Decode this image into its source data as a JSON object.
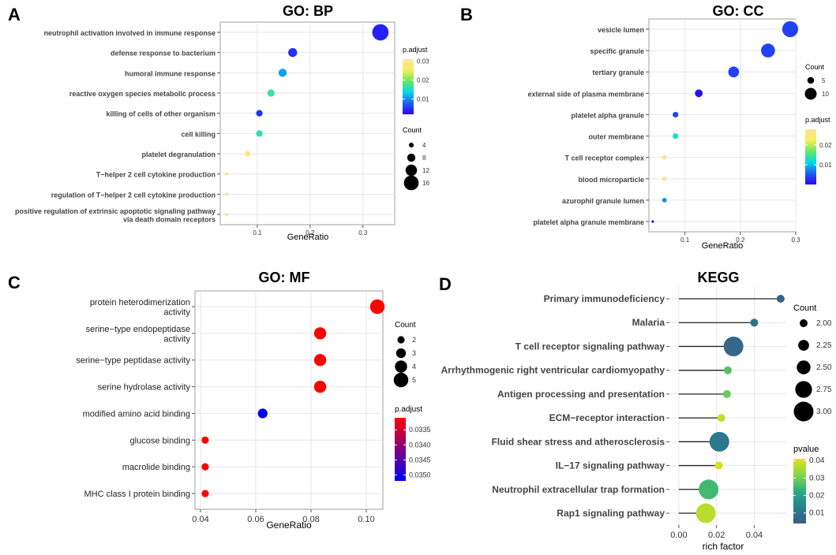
{
  "chart_data": [
    {
      "panel": "A",
      "type": "scatter",
      "title": "GO: BP",
      "xlabel": "GeneRatio",
      "xlim": [
        0.03,
        0.36
      ],
      "xticks": [
        "0.1",
        "0.2",
        "0.3"
      ],
      "xtick_values": [
        0.1,
        0.2,
        0.3
      ],
      "categories": [
        "neutrophil activation involved in immune response",
        "defense response to bacterium",
        "humoral immune response",
        "reactive oxygen species metabolic process",
        "killing of cells of other organism",
        "cell killing",
        "platelet degranulation",
        "T−helper 2 cell cytokine production",
        "regulation of T−helper 2 cell cytokine production",
        "positive regulation of extrinsic apoptotic signaling pathway|via death domain receptors"
      ],
      "points": [
        {
          "x": 0.333,
          "count": 18,
          "padj": 0.004
        },
        {
          "x": 0.167,
          "count": 9,
          "padj": 0.005
        },
        {
          "x": 0.148,
          "count": 8,
          "padj": 0.011
        },
        {
          "x": 0.126,
          "count": 7,
          "padj": 0.017
        },
        {
          "x": 0.104,
          "count": 6,
          "padj": 0.005
        },
        {
          "x": 0.104,
          "count": 6,
          "padj": 0.016
        },
        {
          "x": 0.082,
          "count": 5,
          "padj": 0.028
        },
        {
          "x": 0.042,
          "count": 2,
          "padj": 0.029
        },
        {
          "x": 0.042,
          "count": 2,
          "padj": 0.03
        },
        {
          "x": 0.042,
          "count": 2,
          "padj": 0.031
        }
      ],
      "color_legend": {
        "title": "p.adjust",
        "ticks": [
          "0.03",
          "0.02",
          "0.01"
        ],
        "tick_values": [
          0.03,
          0.02,
          0.01
        ],
        "range": [
          0.002,
          0.031
        ]
      },
      "size_legend": {
        "title": "Count",
        "labels": [
          "4",
          "8",
          "12",
          "16"
        ],
        "values": [
          4,
          8,
          12,
          16
        ]
      }
    },
    {
      "panel": "B",
      "type": "scatter",
      "title": "GO: CC",
      "xlabel": "GeneRatio",
      "xlim": [
        0.035,
        0.3
      ],
      "xticks": [
        "0.1",
        "0.2",
        "0.3"
      ],
      "xtick_values": [
        0.1,
        0.2,
        0.3
      ],
      "categories": [
        "vesicle lumen",
        "specific granule",
        "tertiary granule",
        "external side of plasma membrane",
        "platelet alpha granule",
        "outer membrane",
        "T cell receptor complex",
        "blood microparticle",
        "azurophil granule lumen",
        "platelet alpha granule membrane"
      ],
      "points": [
        {
          "x": 0.29,
          "count": 14,
          "padj": 0.004
        },
        {
          "x": 0.25,
          "count": 12,
          "padj": 0.004
        },
        {
          "x": 0.188,
          "count": 9,
          "padj": 0.004
        },
        {
          "x": 0.125,
          "count": 6,
          "padj": 0.001
        },
        {
          "x": 0.083,
          "count": 4,
          "padj": 0.004
        },
        {
          "x": 0.083,
          "count": 4,
          "padj": 0.013
        },
        {
          "x": 0.063,
          "count": 3,
          "padj": 0.027
        },
        {
          "x": 0.063,
          "count": 3,
          "padj": 0.028
        },
        {
          "x": 0.063,
          "count": 3,
          "padj": 0.008
        },
        {
          "x": 0.042,
          "count": 1,
          "padj": 0.001
        }
      ],
      "color_legend": {
        "title": "p.adjust",
        "ticks": [
          "0.02",
          "0.01"
        ],
        "tick_values": [
          0.02,
          0.01
        ],
        "range": [
          0.0,
          0.028
        ]
      },
      "size_legend": {
        "title": "Count",
        "labels": [
          "5",
          "10"
        ],
        "values": [
          5,
          10
        ]
      }
    },
    {
      "panel": "C",
      "type": "scatter",
      "title": "GO: MF",
      "xlabel": "GeneRatio",
      "xlim": [
        0.038,
        0.106
      ],
      "xticks": [
        "0.04",
        "0.06",
        "0.08",
        "0.10"
      ],
      "xtick_values": [
        0.04,
        0.06,
        0.08,
        0.1
      ],
      "categories": [
        "protein heterodimerization|activity",
        "serine−type endopeptidase|activity",
        "serine−type peptidase activity",
        "serine hydrolase activity",
        "modified amino acid binding",
        "glucose binding",
        "macrolide binding",
        "MHC class I protein binding"
      ],
      "points": [
        {
          "x": 0.104,
          "count": 5,
          "padj": 0.0331
        },
        {
          "x": 0.0833,
          "count": 4,
          "padj": 0.0331
        },
        {
          "x": 0.0833,
          "count": 4,
          "padj": 0.0331
        },
        {
          "x": 0.0833,
          "count": 4,
          "padj": 0.0331
        },
        {
          "x": 0.0625,
          "count": 3,
          "padj": 0.0352
        },
        {
          "x": 0.0417,
          "count": 2,
          "padj": 0.0331
        },
        {
          "x": 0.0417,
          "count": 2,
          "padj": 0.0331
        },
        {
          "x": 0.0417,
          "count": 2,
          "padj": 0.0331
        }
      ],
      "color_legend": {
        "title": "p.adjust",
        "ticks": [
          "0.0335",
          "0.0340",
          "0.0345",
          "0.0350"
        ],
        "tick_values": [
          0.0335,
          0.034,
          0.0345,
          0.035
        ],
        "range": [
          0.0331,
          0.0352
        ]
      },
      "size_legend": {
        "title": "Count",
        "labels": [
          "2",
          "3",
          "4",
          "5"
        ],
        "values": [
          2,
          3,
          4,
          5
        ]
      }
    },
    {
      "panel": "D",
      "type": "lollipop",
      "title": "KEGG",
      "xlabel": "rich factor",
      "xlim": [
        -0.005,
        0.057
      ],
      "xticks": [
        "0.00",
        "0.02",
        "0.04"
      ],
      "xtick_values": [
        0.0,
        0.02,
        0.04
      ],
      "categories": [
        "Primary immunodeficiency",
        "Malaria",
        "T cell receptor signaling pathway",
        "Arrhythmogenic right ventricular cardiomyopathy",
        "Antigen processing and presentation",
        "ECM−receptor interaction",
        "Fluid shear stress and atherosclerosis",
        "IL−17 signaling pathway",
        "Neutrophil extracellular trap formation",
        "Rap1 signaling pathway"
      ],
      "points": [
        {
          "x": 0.054,
          "count": 2,
          "pvalue": 0.006
        },
        {
          "x": 0.04,
          "count": 2,
          "pvalue": 0.01
        },
        {
          "x": 0.029,
          "count": 3,
          "pvalue": 0.007
        },
        {
          "x": 0.026,
          "count": 2,
          "pvalue": 0.027
        },
        {
          "x": 0.0255,
          "count": 2,
          "pvalue": 0.029
        },
        {
          "x": 0.0225,
          "count": 2,
          "pvalue": 0.038
        },
        {
          "x": 0.0215,
          "count": 3,
          "pvalue": 0.011
        },
        {
          "x": 0.0212,
          "count": 2,
          "pvalue": 0.04
        },
        {
          "x": 0.0158,
          "count": 3,
          "pvalue": 0.025
        },
        {
          "x": 0.0143,
          "count": 3,
          "pvalue": 0.037
        }
      ],
      "color_legend": {
        "title": "pvalue",
        "ticks": [
          "0.04",
          "0.03",
          "0.02",
          "0.01"
        ],
        "tick_values": [
          0.04,
          0.03,
          0.02,
          0.01
        ],
        "range": [
          0.004,
          0.041
        ]
      },
      "size_legend": {
        "title": "Count",
        "labels": [
          "2.00",
          "2.25",
          "2.50",
          "2.75",
          "3.00"
        ],
        "values": [
          2.0,
          2.25,
          2.5,
          2.75,
          3.0
        ]
      }
    }
  ]
}
